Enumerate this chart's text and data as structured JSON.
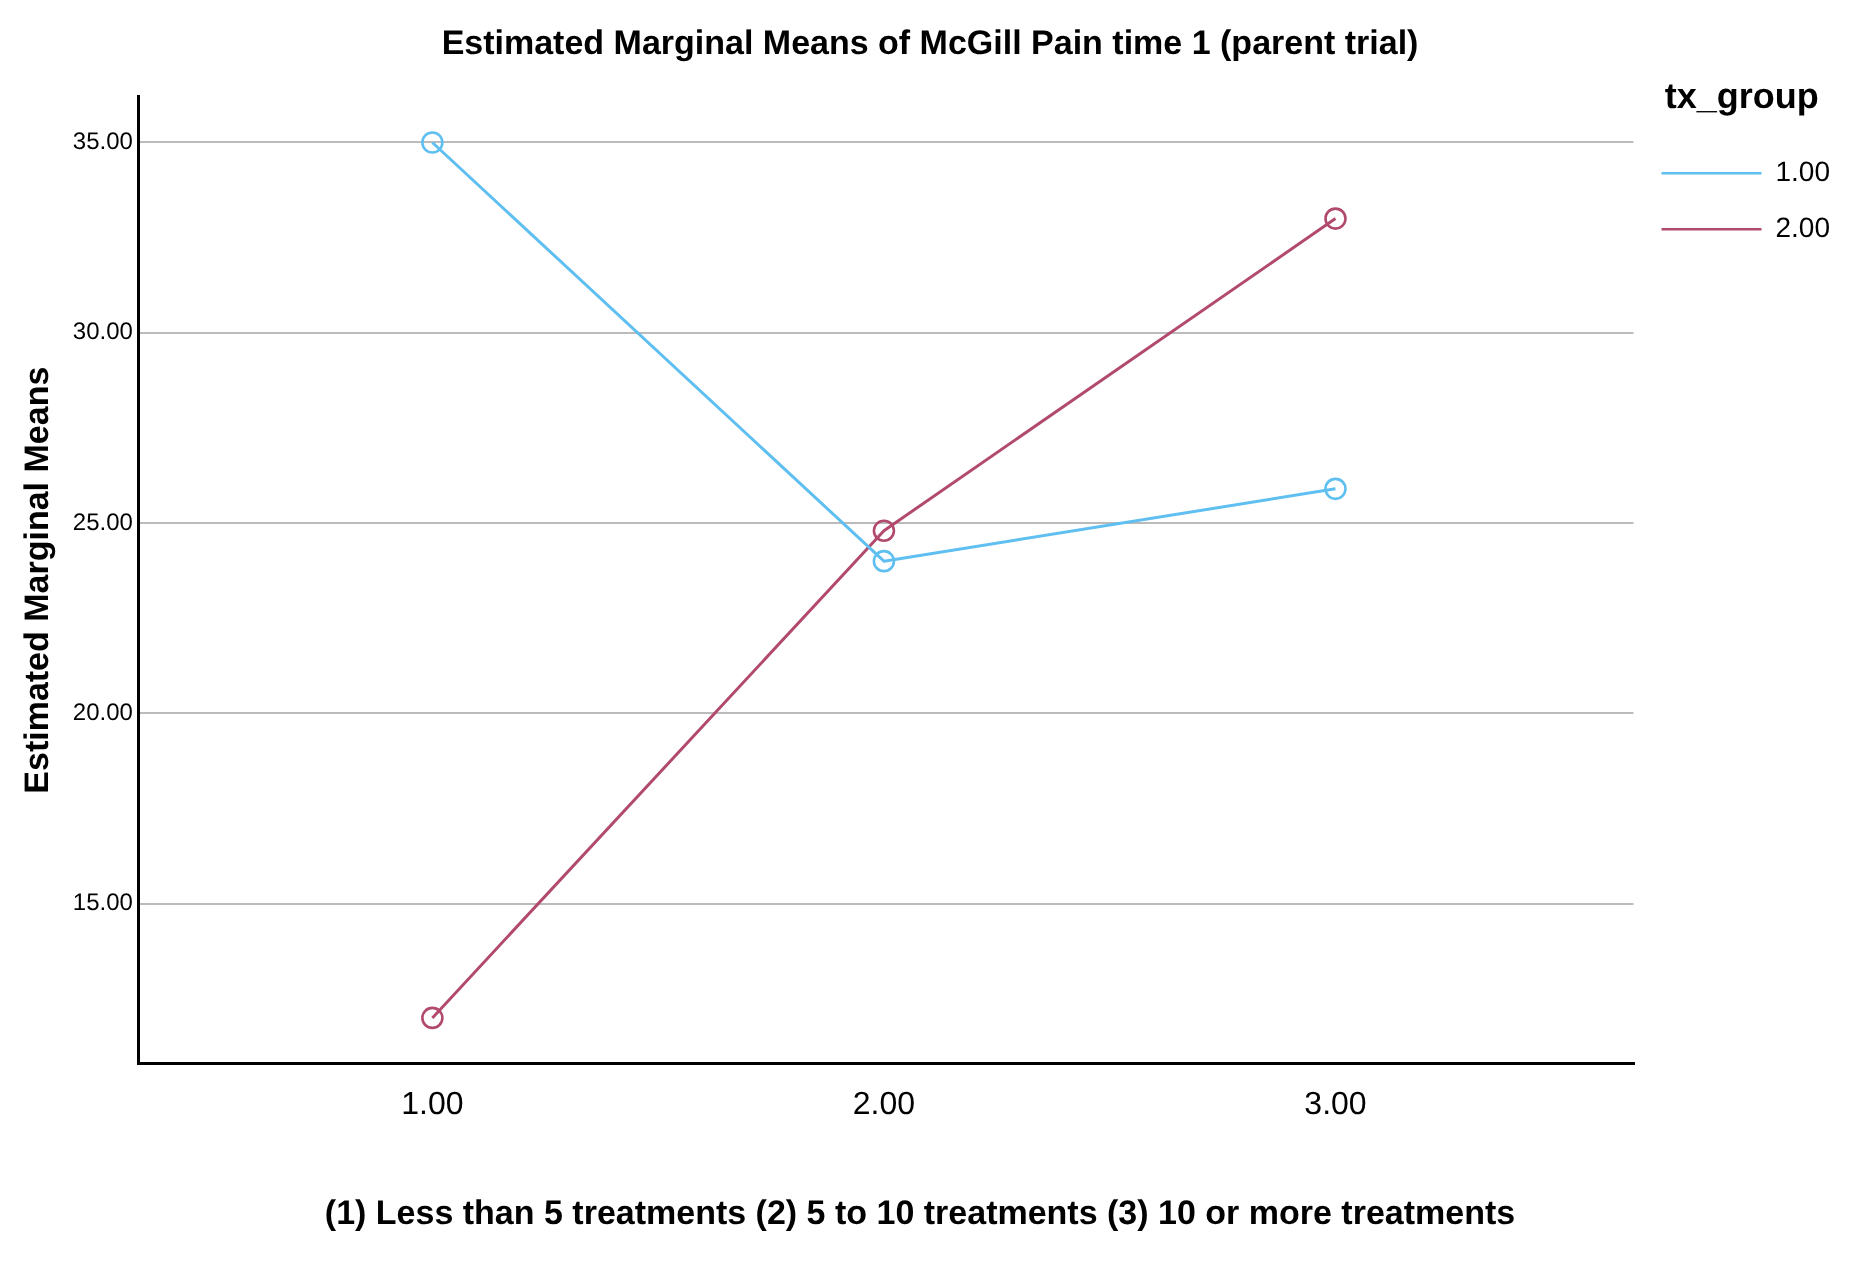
{
  "chart_data": {
    "type": "line",
    "title": "Estimated Marginal Means of McGill Pain time 1 (parent trial)",
    "xlabel": "(1) Less than 5 treatments (2) 5 to 10 treatments (3) 10 or more treatments",
    "ylabel": "Estimated Marginal Means",
    "legend_title": "tx_group",
    "x": [
      1,
      2,
      3
    ],
    "xlim": [
      0.35,
      3.66
    ],
    "xticks": [
      {
        "value": 1,
        "label": "1.00"
      },
      {
        "value": 2,
        "label": "2.00"
      },
      {
        "value": 3,
        "label": "3.00"
      }
    ],
    "ylim": [
      10.8,
      36.2
    ],
    "yticks": [
      {
        "value": 15,
        "label": "15.00"
      },
      {
        "value": 20,
        "label": "20.00"
      },
      {
        "value": 25,
        "label": "25.00"
      },
      {
        "value": 30,
        "label": "30.00"
      },
      {
        "value": 35,
        "label": "35.00"
      }
    ],
    "series": [
      {
        "name": "1.00",
        "color": "#5fbff0",
        "values": [
          35.0,
          24.0,
          25.9
        ]
      },
      {
        "name": "2.00",
        "color": "#b24a6e",
        "values": [
          12.0,
          24.8,
          33.0
        ]
      }
    ],
    "grid": "y",
    "legend": "top right",
    "marker": "circle",
    "line_style": "solid"
  }
}
